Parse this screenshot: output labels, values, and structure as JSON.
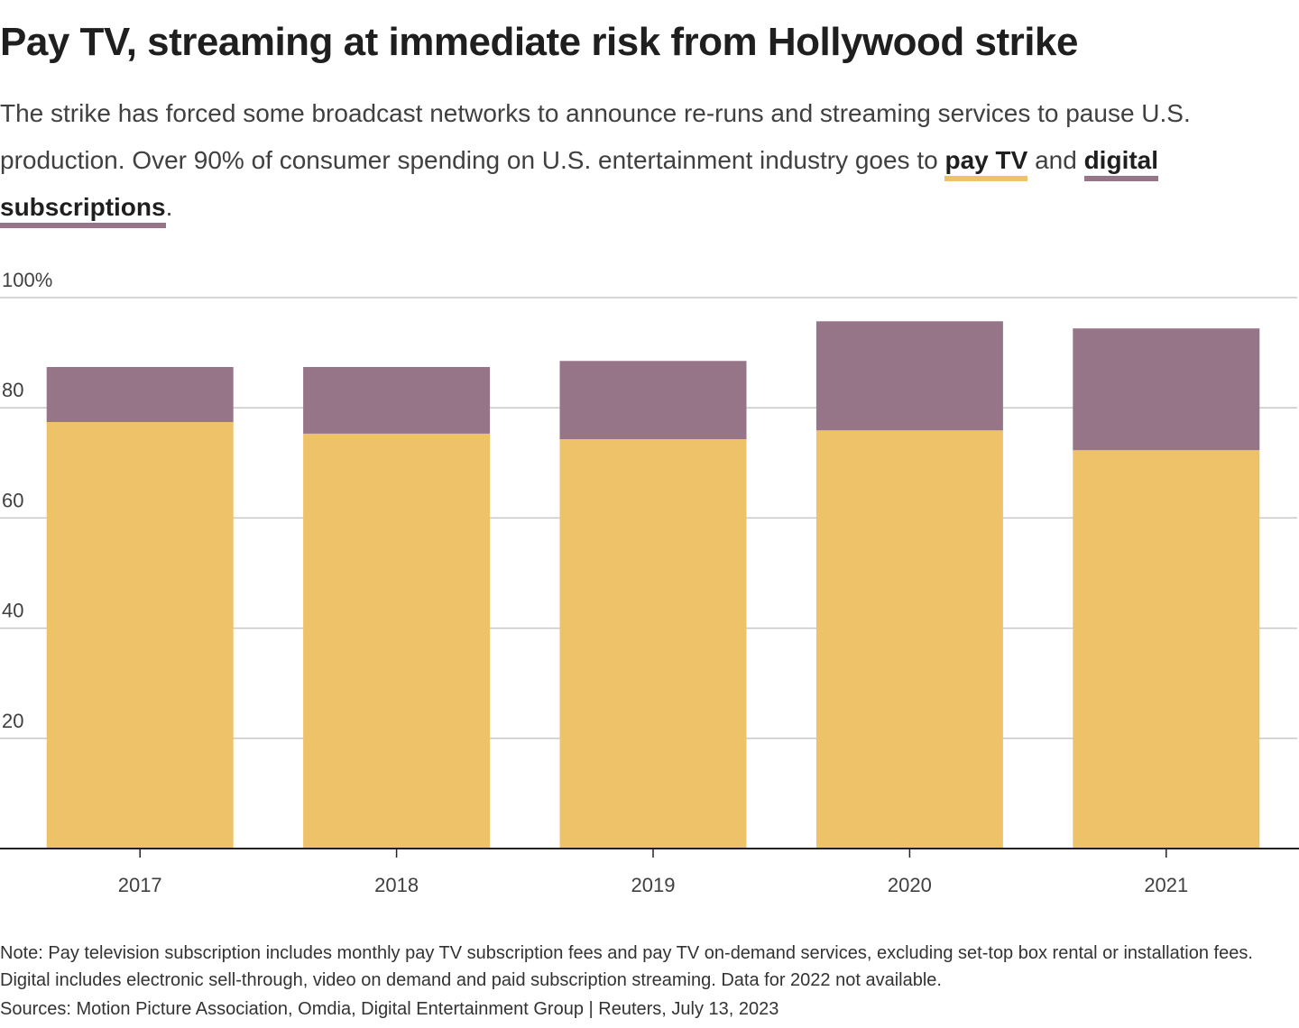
{
  "header": {
    "title": "Pay TV, streaming at immediate risk from Hollywood strike",
    "subtitle_parts": {
      "lead": "The strike has forced some broadcast networks to announce re-runs and streaming services to pause U.S. production. Over 90% of consumer spending on U.S. entertainment industry goes to ",
      "pay_tv": "pay TV",
      "and": " and ",
      "digital": "digital subscriptions",
      "end": "."
    }
  },
  "colors": {
    "pay_tv": "#EEC268",
    "digital": "#967589",
    "grid": "#c8c8c8",
    "axis": "#222222"
  },
  "chart_data": {
    "type": "bar",
    "stacked": true,
    "title": "Pay TV, streaming at immediate risk from Hollywood strike",
    "xlabel": "",
    "ylabel": "",
    "categories": [
      "2017",
      "2018",
      "2019",
      "2020",
      "2021"
    ],
    "series": [
      {
        "name": "pay TV",
        "color": "#EEC268",
        "values": [
          77.4,
          75.3,
          74.3,
          75.9,
          72.3
        ]
      },
      {
        "name": "digital subscriptions",
        "color": "#967589",
        "values": [
          10.0,
          12.1,
          14.2,
          19.8,
          22.1
        ]
      }
    ],
    "ylim": [
      0,
      100
    ],
    "yticks": [
      20,
      40,
      60,
      80,
      100
    ],
    "ytick_labels": [
      "20",
      "40",
      "60",
      "80",
      "100%"
    ],
    "grid": true,
    "legend": "inline in subtitle"
  },
  "footer": {
    "note": "Note: Pay television subscription includes monthly pay TV subscription fees and pay TV on-demand services, excluding set-top box rental or installation fees. Digital includes electronic sell-through, video on demand and paid subscription streaming. Data for 2022 not available.",
    "source": "Sources: Motion Picture Association, Omdia, Digital Entertainment Group | Reuters, July 13, 2023"
  }
}
